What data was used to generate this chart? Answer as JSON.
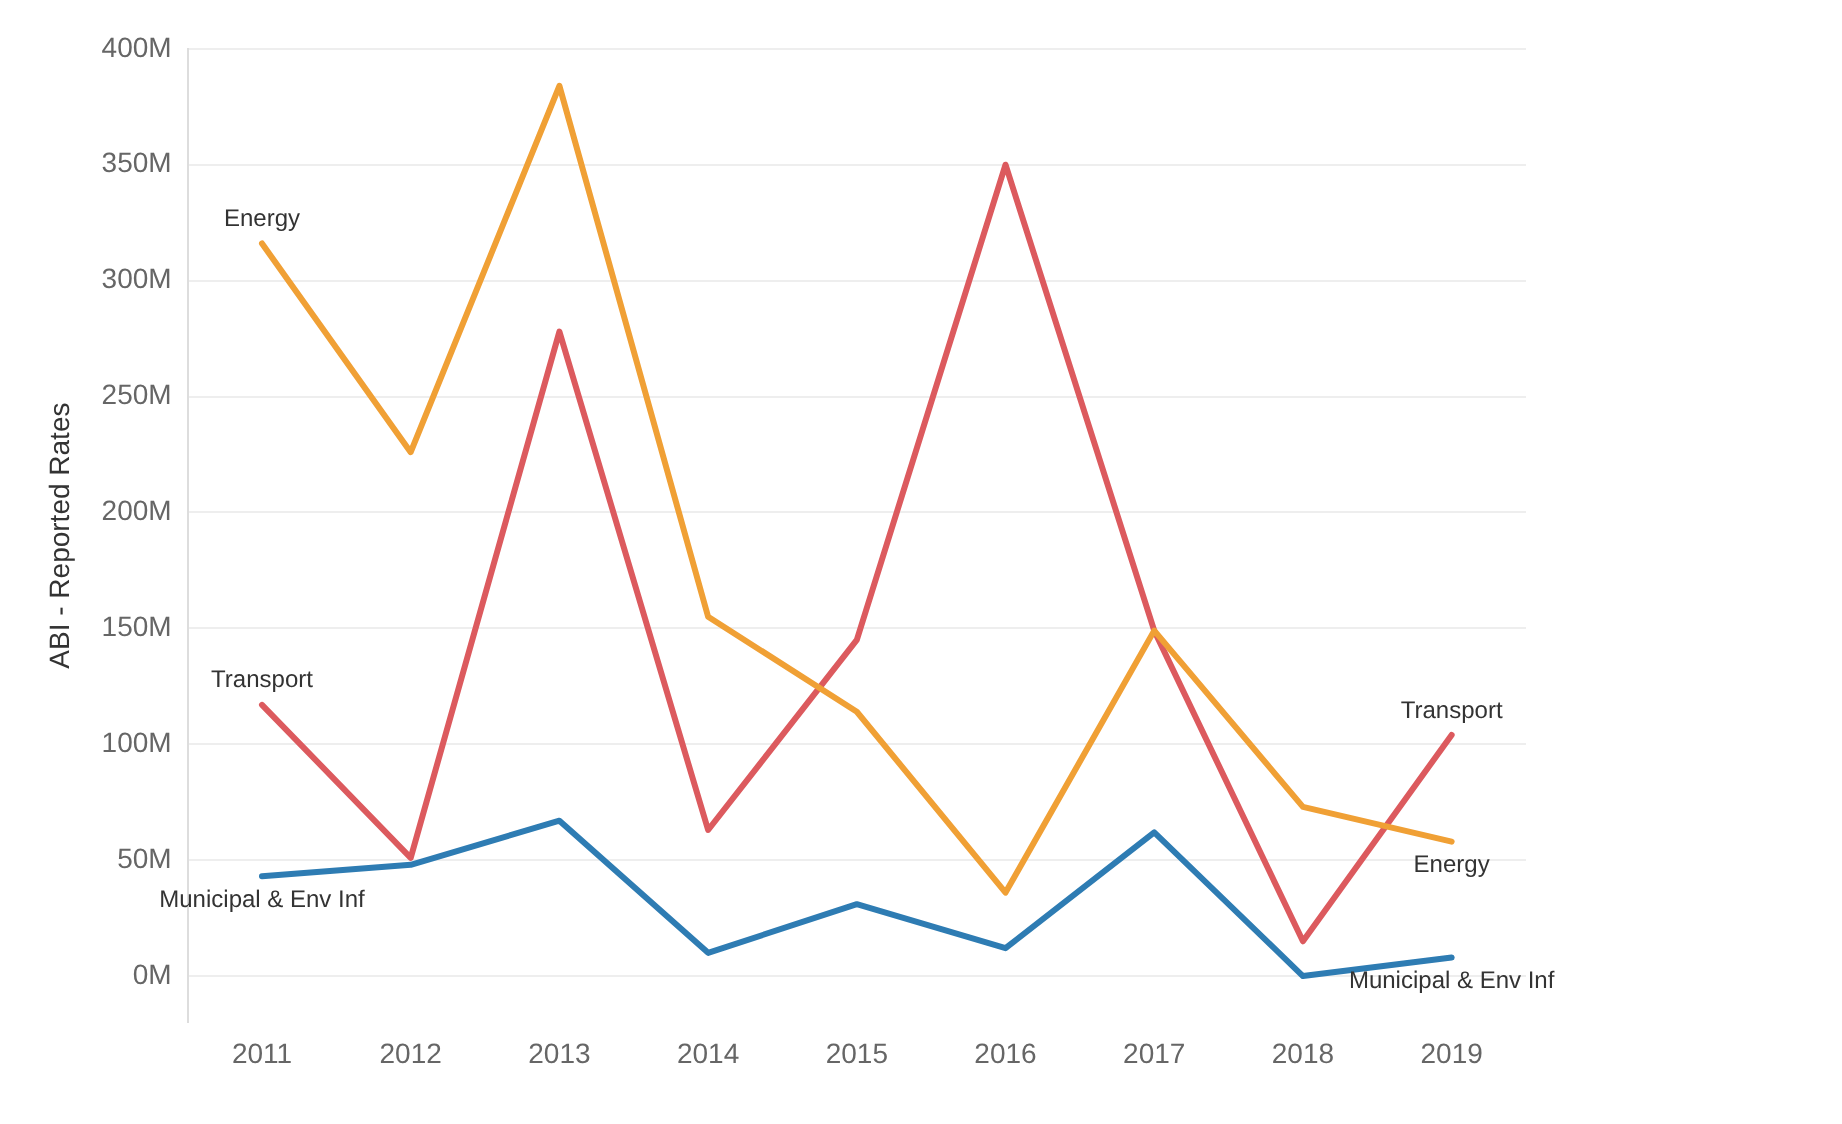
{
  "chart_data": {
    "type": "line",
    "ylabel": "ABI - Reported Rates",
    "categories": [
      "2011",
      "2012",
      "2013",
      "2014",
      "2015",
      "2016",
      "2017",
      "2018",
      "2019"
    ],
    "series": [
      {
        "name": "Energy",
        "color": "#f0a035",
        "values": [
          316,
          226,
          384,
          155,
          114,
          36,
          149,
          73,
          58
        ]
      },
      {
        "name": "Transport",
        "color": "#dc5a5e",
        "values": [
          117,
          51,
          278,
          63,
          145,
          350,
          149,
          15,
          104
        ]
      },
      {
        "name": "Municipal & Env Inf",
        "color": "#2e7cb3",
        "values": [
          43,
          48,
          67,
          10,
          31,
          12,
          62,
          0,
          8
        ]
      }
    ],
    "ylim": [
      -20,
      400
    ],
    "yticks": [
      {
        "value": 0,
        "label": "0M"
      },
      {
        "value": 50,
        "label": "50M"
      },
      {
        "value": 100,
        "label": "100M"
      },
      {
        "value": 150,
        "label": "150M"
      },
      {
        "value": 200,
        "label": "200M"
      },
      {
        "value": 250,
        "label": "250M"
      },
      {
        "value": 300,
        "label": "300M"
      },
      {
        "value": 350,
        "label": "350M"
      },
      {
        "value": 400,
        "label": "400M"
      }
    ],
    "grid": "y",
    "legend": false,
    "marker": "none",
    "line_style": "solid"
  }
}
